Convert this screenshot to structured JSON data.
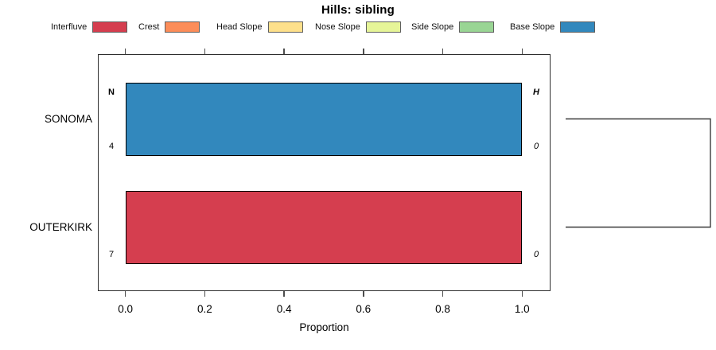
{
  "title": "Hills: sibling",
  "legend": {
    "items": [
      {
        "label": "Interfluve",
        "color": "#d53e4f"
      },
      {
        "label": "Crest",
        "color": "#fc8d59"
      },
      {
        "label": "Head Slope",
        "color": "#fee08b"
      },
      {
        "label": "Nose Slope",
        "color": "#e6f598"
      },
      {
        "label": "Side Slope",
        "color": "#99d594"
      },
      {
        "label": "Base Slope",
        "color": "#3288bd"
      }
    ]
  },
  "chart_data": {
    "type": "bar",
    "orientation": "horizontal",
    "stacked": true,
    "title": "Hills: sibling",
    "xlabel": "Proportion",
    "xlim": [
      0,
      1
    ],
    "x_tick_labels": [
      "0.0",
      "0.2",
      "0.4",
      "0.6",
      "0.8",
      "1.0"
    ],
    "grid": false,
    "legend_position": "top",
    "classes": [
      "Interfluve",
      "Crest",
      "Head Slope",
      "Nose Slope",
      "Side Slope",
      "Base Slope"
    ],
    "class_colors": [
      "#d53e4f",
      "#fc8d59",
      "#fee08b",
      "#e6f598",
      "#99d594",
      "#3288bd"
    ],
    "left_header": "N",
    "right_header": "H",
    "rows": [
      {
        "category": "SONOMA",
        "segments": [
          {
            "class": "Base Slope",
            "proportion": 1.0,
            "color": "#3288bd"
          }
        ],
        "n": "4",
        "h": "0"
      },
      {
        "category": "OUTERKIRK",
        "segments": [
          {
            "class": "Interfluve",
            "proportion": 1.0,
            "color": "#d53e4f"
          }
        ],
        "n": "7",
        "h": "0"
      }
    ],
    "dendrogram_bracket": {
      "connects": [
        "SONOMA",
        "OUTERKIRK"
      ]
    }
  }
}
